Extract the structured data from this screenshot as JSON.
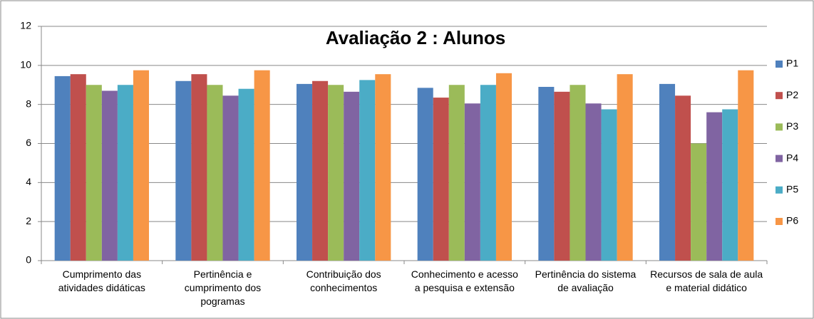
{
  "chart_data": {
    "type": "bar",
    "title": "Avaliação 2 : Alunos",
    "categories": [
      "Cumprimento das atividades didáticas",
      "Pertinência e cumprimento  dos pogramas",
      "Contribuição dos conhecimentos",
      "Conhecimento e acesso a pesquisa e extensão",
      "Pertinência do sistema de avaliação",
      "Recursos de sala de aula e material didático"
    ],
    "series": [
      {
        "name": "P1",
        "color": "#4f81bd",
        "values": [
          9.45,
          9.2,
          9.05,
          8.85,
          8.9,
          9.05
        ]
      },
      {
        "name": "P2",
        "color": "#c0504d",
        "values": [
          9.55,
          9.55,
          9.2,
          8.35,
          8.65,
          8.45
        ]
      },
      {
        "name": "P3",
        "color": "#9bbb59",
        "values": [
          9.0,
          9.0,
          9.0,
          9.0,
          9.0,
          6.0
        ]
      },
      {
        "name": "P4",
        "color": "#8064a2",
        "values": [
          8.7,
          8.45,
          8.65,
          8.05,
          8.05,
          7.6
        ]
      },
      {
        "name": "P5",
        "color": "#4bacc6",
        "values": [
          9.0,
          8.8,
          9.25,
          9.0,
          7.75,
          7.75
        ]
      },
      {
        "name": "P6",
        "color": "#f79646",
        "values": [
          9.75,
          9.75,
          9.55,
          9.6,
          9.55,
          9.75
        ]
      }
    ],
    "ylim": [
      0,
      12
    ],
    "yticks": [
      0,
      2,
      4,
      6,
      8,
      10,
      12
    ],
    "grid": true,
    "legend": "right"
  }
}
